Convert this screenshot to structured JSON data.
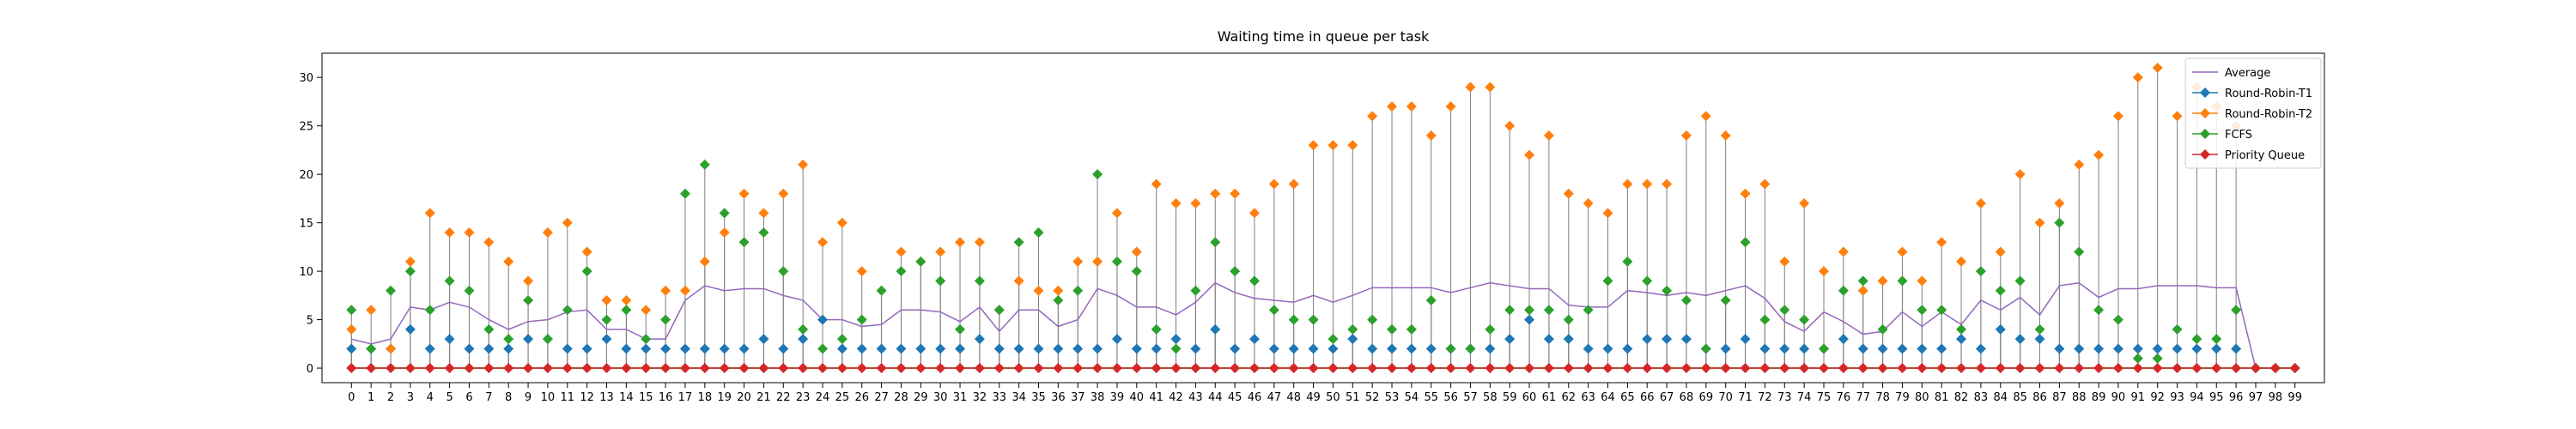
{
  "chart_data": {
    "type": "line",
    "title": "Waiting time in queue per task",
    "xlabel": "",
    "ylabel": "",
    "ylim": [
      -1.5,
      32.5
    ],
    "xlim": [
      -1.5,
      100.5
    ],
    "y_ticks": [
      0,
      5,
      10,
      15,
      20,
      25,
      30
    ],
    "x": [
      0,
      1,
      2,
      3,
      4,
      5,
      6,
      7,
      8,
      9,
      10,
      11,
      12,
      13,
      14,
      15,
      16,
      17,
      18,
      19,
      20,
      21,
      22,
      23,
      24,
      25,
      26,
      27,
      28,
      29,
      30,
      31,
      32,
      33,
      34,
      35,
      36,
      37,
      38,
      39,
      40,
      41,
      42,
      43,
      44,
      45,
      46,
      47,
      48,
      49,
      50,
      51,
      52,
      53,
      54,
      55,
      56,
      57,
      58,
      59,
      60,
      61,
      62,
      63,
      64,
      65,
      66,
      67,
      68,
      69,
      70,
      71,
      72,
      73,
      74,
      75,
      76,
      77,
      78,
      79,
      80,
      81,
      82,
      83,
      84,
      85,
      86,
      87,
      88,
      89,
      90,
      91,
      92,
      93,
      94,
      95,
      96,
      97,
      98,
      99
    ],
    "grid": false,
    "legend_position": "top-right",
    "series": [
      {
        "name": "Average",
        "kind": "line",
        "color": "#9467bd",
        "values": [
          3,
          2.5,
          3,
          6.3,
          6,
          6.8,
          6.3,
          5,
          4,
          4.8,
          5,
          5.8,
          6,
          4,
          4,
          3,
          3,
          7,
          8.5,
          8,
          8.2,
          8.2,
          7.5,
          7,
          5,
          5,
          4.3,
          4.5,
          6,
          6,
          5.8,
          4.8,
          6.3,
          3.8,
          6,
          6,
          4.3,
          5,
          8.2,
          7.5,
          6.3,
          6.3,
          5.5,
          6.8,
          8.8,
          7.8,
          7.2,
          7,
          6.8,
          7.5,
          6.8,
          7.5,
          8.3,
          8.3,
          8.3,
          8.3,
          7.8,
          8.3,
          8.8,
          8.5,
          8.2,
          8.2,
          6.5,
          6.3,
          6.3,
          8,
          7.8,
          7.5,
          7.8,
          7.5,
          8,
          8.5,
          7.2,
          4.8,
          3.8,
          5.8,
          4.8,
          3.5,
          3.8,
          5.8,
          4.3,
          5.8,
          4.5,
          7,
          6,
          7.3,
          5.5,
          8.5,
          8.8,
          7.3,
          8.2,
          8.2,
          8.5,
          8.5,
          8.5,
          8.3,
          8.3,
          0,
          0,
          0
        ]
      },
      {
        "name": "Round-Robin-T1",
        "kind": "stem",
        "color": "#1f77b4",
        "values": [
          2,
          2,
          2,
          4,
          2,
          3,
          2,
          2,
          2,
          3,
          3,
          2,
          2,
          3,
          2,
          2,
          2,
          2,
          2,
          2,
          2,
          3,
          2,
          3,
          5,
          2,
          2,
          2,
          2,
          2,
          2,
          2,
          3,
          2,
          2,
          2,
          2,
          2,
          2,
          3,
          2,
          2,
          3,
          2,
          4,
          2,
          3,
          2,
          2,
          2,
          2,
          3,
          2,
          2,
          2,
          2,
          2,
          2,
          2,
          3,
          5,
          3,
          3,
          2,
          2,
          2,
          3,
          3,
          3,
          2,
          2,
          3,
          2,
          2,
          2,
          2,
          3,
          2,
          2,
          2,
          2,
          2,
          3,
          2,
          4,
          3,
          3,
          2,
          2,
          2,
          2,
          2,
          2,
          2,
          2,
          2,
          2,
          0,
          0,
          0
        ]
      },
      {
        "name": "Round-Robin-T2",
        "kind": "stem",
        "color": "#ff7f0e",
        "values": [
          4,
          6,
          2,
          11,
          16,
          14,
          14,
          13,
          11,
          9,
          14,
          15,
          12,
          7,
          7,
          6,
          8,
          8,
          11,
          14,
          18,
          16,
          18,
          21,
          13,
          15,
          10,
          8,
          12,
          11,
          12,
          13,
          13,
          6,
          9,
          8,
          8,
          11,
          11,
          16,
          12,
          19,
          17,
          17,
          18,
          18,
          16,
          19,
          19,
          23,
          23,
          23,
          26,
          27,
          27,
          24,
          27,
          29,
          29,
          25,
          22,
          24,
          18,
          17,
          16,
          19,
          19,
          19,
          24,
          26,
          24,
          18,
          19,
          11,
          17,
          10,
          12,
          8,
          9,
          12,
          9,
          13,
          11,
          17,
          12,
          20,
          15,
          17,
          21,
          22,
          26,
          30,
          31,
          26,
          29,
          27,
          25,
          0,
          0,
          0
        ]
      },
      {
        "name": "FCFS",
        "kind": "stem",
        "color": "#2ca02c",
        "values": [
          6,
          2,
          8,
          10,
          6,
          9,
          8,
          4,
          3,
          7,
          3,
          6,
          10,
          5,
          6,
          3,
          5,
          18,
          21,
          16,
          13,
          14,
          10,
          4,
          2,
          3,
          5,
          8,
          10,
          11,
          9,
          4,
          9,
          6,
          13,
          14,
          7,
          8,
          20,
          11,
          10,
          4,
          2,
          8,
          13,
          10,
          9,
          6,
          5,
          5,
          3,
          4,
          5,
          4,
          4,
          7,
          2,
          2,
          4,
          6,
          6,
          6,
          5,
          6,
          9,
          11,
          9,
          8,
          7,
          2,
          7,
          13,
          5,
          6,
          5,
          2,
          8,
          9,
          4,
          9,
          6,
          6,
          4,
          10,
          8,
          9,
          4,
          15,
          12,
          6,
          5,
          1,
          1,
          4,
          3,
          3,
          6,
          0,
          0,
          0
        ]
      },
      {
        "name": "Priority Queue",
        "kind": "stem",
        "color": "#d62728",
        "values": [
          0,
          0,
          0,
          0,
          0,
          0,
          0,
          0,
          0,
          0,
          0,
          0,
          0,
          0,
          0,
          0,
          0,
          0,
          0,
          0,
          0,
          0,
          0,
          0,
          0,
          0,
          0,
          0,
          0,
          0,
          0,
          0,
          0,
          0,
          0,
          0,
          0,
          0,
          0,
          0,
          0,
          0,
          0,
          0,
          0,
          0,
          0,
          0,
          0,
          0,
          0,
          0,
          0,
          0,
          0,
          0,
          0,
          0,
          0,
          0,
          0,
          0,
          0,
          0,
          0,
          0,
          0,
          0,
          0,
          0,
          0,
          0,
          0,
          0,
          0,
          0,
          0,
          0,
          0,
          0,
          0,
          0,
          0,
          0,
          0,
          0,
          0,
          0,
          0,
          0,
          0,
          0,
          0,
          0,
          0,
          0,
          0,
          0,
          0,
          0
        ]
      }
    ]
  }
}
